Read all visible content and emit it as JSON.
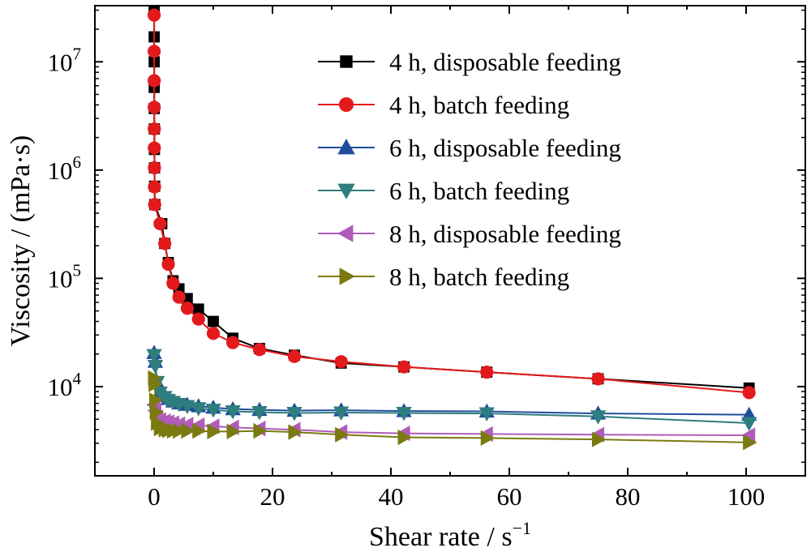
{
  "chart_data": {
    "type": "line",
    "xlabel": "Shear rate / s",
    "xlabel_sup": "−1",
    "ylabel": "Viscosity / (mPa·s)",
    "x_scale": "linear",
    "y_scale": "log",
    "xlim": [
      -10,
      110
    ],
    "ylim": [
      1500,
      33000000
    ],
    "x_ticks": [
      0,
      20,
      40,
      60,
      80,
      100
    ],
    "x_tick_labels": [
      "0",
      "20",
      "40",
      "60",
      "80",
      "100"
    ],
    "y_ticks": [
      10000,
      100000,
      1000000,
      10000000
    ],
    "y_tick_labels": [
      {
        "base": "10",
        "exp": "4"
      },
      {
        "base": "10",
        "exp": "5"
      },
      {
        "base": "10",
        "exp": "6"
      },
      {
        "base": "10",
        "exp": "7"
      }
    ],
    "grid": false,
    "legend_position": "top-right",
    "series": [
      {
        "name": "4 h, disposable feeding",
        "color": "#000000",
        "marker": "square",
        "points": [
          [
            0.01,
            29000000
          ],
          [
            0.013,
            17000000
          ],
          [
            0.018,
            10000000
          ],
          [
            0.024,
            5800000
          ],
          [
            0.032,
            3700000
          ],
          [
            0.042,
            2400000
          ],
          [
            0.056,
            1550000
          ],
          [
            0.075,
            1050000
          ],
          [
            0.1,
            710000
          ],
          [
            0.13,
            480000
          ],
          [
            1.3,
            320000
          ],
          [
            1.8,
            210000
          ],
          [
            2.4,
            140000
          ],
          [
            3.2,
            95000
          ],
          [
            4.2,
            80000
          ],
          [
            5.6,
            65000
          ],
          [
            7.5,
            52000
          ],
          [
            10,
            40000
          ],
          [
            13.3,
            28000
          ],
          [
            17.8,
            22500
          ],
          [
            23.7,
            19500
          ],
          [
            31.6,
            16500
          ],
          [
            42.2,
            15200
          ],
          [
            56.2,
            13600
          ],
          [
            75,
            11800
          ],
          [
            100.5,
            9700
          ]
        ]
      },
      {
        "name": "4 h, batch feeding",
        "color": "#e31a1c",
        "marker": "circle",
        "points": [
          [
            0.01,
            27000000
          ],
          [
            0.013,
            12500000
          ],
          [
            0.018,
            6700000
          ],
          [
            0.024,
            3800000
          ],
          [
            0.032,
            2400000
          ],
          [
            0.042,
            1600000
          ],
          [
            0.056,
            1050000
          ],
          [
            0.075,
            700000
          ],
          [
            0.1,
            480000
          ],
          [
            1.0,
            320000
          ],
          [
            1.8,
            210000
          ],
          [
            2.4,
            135000
          ],
          [
            3.2,
            90000
          ],
          [
            4.2,
            67000
          ],
          [
            5.6,
            53000
          ],
          [
            7.5,
            42000
          ],
          [
            10,
            31000
          ],
          [
            13.3,
            25500
          ],
          [
            17.8,
            22000
          ],
          [
            23.7,
            19000
          ],
          [
            31.6,
            17000
          ],
          [
            42.2,
            15200
          ],
          [
            56.2,
            13600
          ],
          [
            75,
            11800
          ],
          [
            100.5,
            8800
          ]
        ]
      },
      {
        "name": "6 h, disposable feeding",
        "color": "#1f4e9c",
        "marker": "triangle-up",
        "points": [
          [
            0.01,
            20500.0
          ],
          [
            0.2,
            17000
          ],
          [
            0.5,
            11000
          ],
          [
            1.0,
            9000
          ],
          [
            1.8,
            8200
          ],
          [
            2.4,
            7700
          ],
          [
            3.2,
            7300
          ],
          [
            4.2,
            7000
          ],
          [
            5.6,
            6800
          ],
          [
            7.5,
            6600
          ],
          [
            10,
            6400
          ],
          [
            13.3,
            6200
          ],
          [
            17.8,
            6100
          ],
          [
            23.7,
            6000
          ],
          [
            31.6,
            6050
          ],
          [
            42.2,
            5950
          ],
          [
            56.2,
            5900
          ],
          [
            75,
            5650
          ],
          [
            100.5,
            5500
          ]
        ]
      },
      {
        "name": "6 h, batch feeding",
        "color": "#2e7d7f",
        "marker": "triangle-down",
        "points": [
          [
            0.01,
            19500
          ],
          [
            0.2,
            15500
          ],
          [
            0.5,
            11000
          ],
          [
            1.0,
            8800
          ],
          [
            1.8,
            8000
          ],
          [
            2.4,
            7500
          ],
          [
            3.2,
            7200
          ],
          [
            4.2,
            6900
          ],
          [
            5.6,
            6600
          ],
          [
            7.5,
            6300
          ],
          [
            10,
            6100
          ],
          [
            13.3,
            5900
          ],
          [
            17.8,
            5800
          ],
          [
            23.7,
            5700
          ],
          [
            31.6,
            5750
          ],
          [
            42.2,
            5700
          ],
          [
            56.2,
            5650
          ],
          [
            75,
            5300
          ],
          [
            100.5,
            4600
          ]
        ]
      },
      {
        "name": "8 h, disposable feeding",
        "color": "#b05cb8",
        "marker": "triangle-left",
        "points": [
          [
            0.01,
            6800
          ],
          [
            0.2,
            6000
          ],
          [
            0.5,
            5200
          ],
          [
            1.0,
            4900
          ],
          [
            1.8,
            4800
          ],
          [
            2.4,
            4700
          ],
          [
            3.2,
            4600
          ],
          [
            4.2,
            4500
          ],
          [
            5.6,
            4450
          ],
          [
            7.5,
            4400
          ],
          [
            10,
            4300
          ],
          [
            13.3,
            4200
          ],
          [
            17.8,
            4100
          ],
          [
            23.7,
            4000
          ],
          [
            31.6,
            3800
          ],
          [
            42.2,
            3700
          ],
          [
            56.2,
            3650
          ],
          [
            75,
            3600
          ],
          [
            100.5,
            3550
          ]
        ]
      },
      {
        "name": "8 h, batch feeding",
        "color": "#7a7a10",
        "marker": "triangle-right",
        "points": [
          [
            0.01,
            12000
          ],
          [
            0.1,
            10500
          ],
          [
            0.2,
            7500
          ],
          [
            0.3,
            5800
          ],
          [
            0.5,
            4600
          ],
          [
            1.0,
            4100
          ],
          [
            1.8,
            4000
          ],
          [
            2.4,
            3950
          ],
          [
            3.2,
            3900
          ],
          [
            4.2,
            3900
          ],
          [
            5.6,
            3900
          ],
          [
            7.5,
            3900
          ],
          [
            10,
            3850
          ],
          [
            13.3,
            3850
          ],
          [
            17.8,
            3900
          ],
          [
            23.7,
            3800
          ],
          [
            31.6,
            3600
          ],
          [
            42.2,
            3400
          ],
          [
            56.2,
            3350
          ],
          [
            75,
            3250
          ],
          [
            100.5,
            3050
          ]
        ]
      }
    ]
  }
}
